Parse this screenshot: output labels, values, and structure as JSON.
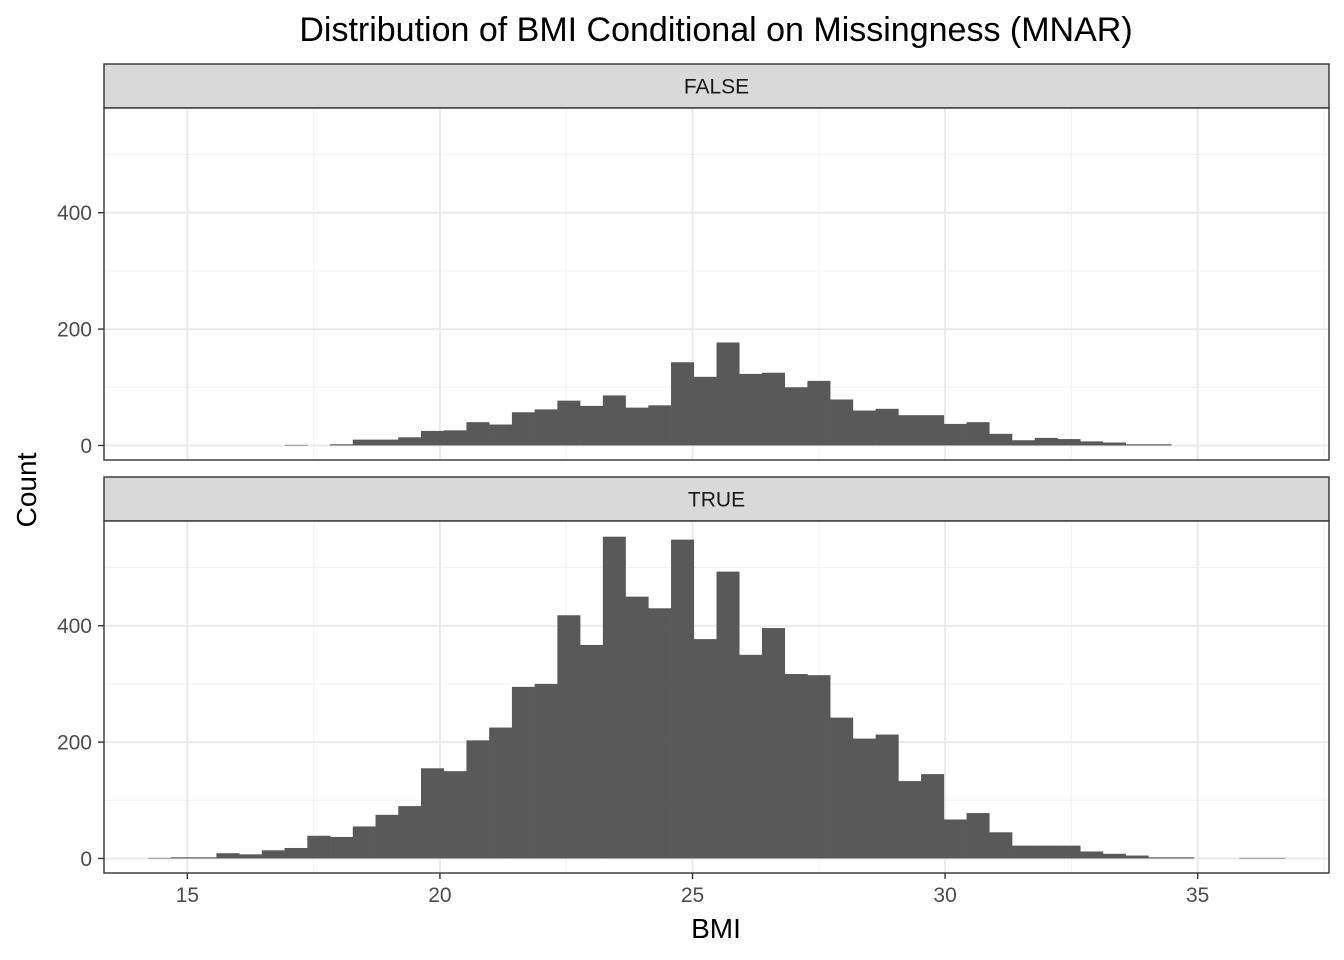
{
  "chart_data": {
    "type": "bar",
    "subtype": "faceted-histogram",
    "title": "Distribution of BMI Conditional on Missingness (MNAR)",
    "xlabel": "BMI",
    "ylabel": "Count",
    "xlim": [
      13.35,
      37.6
    ],
    "ylim": [
      -25,
      580
    ],
    "x_ticks": [
      15,
      20,
      25,
      30,
      35
    ],
    "y_ticks": [
      0,
      200,
      400
    ],
    "grid": true,
    "bar_color": "#595959",
    "bin_width": 0.45,
    "facets": [
      {
        "label": "FALSE",
        "bins": [
          [
            17.15,
            1
          ],
          [
            17.6,
            0
          ],
          [
            18.05,
            2
          ],
          [
            18.5,
            10
          ],
          [
            18.95,
            10
          ],
          [
            19.4,
            14
          ],
          [
            19.85,
            25
          ],
          [
            20.3,
            26
          ],
          [
            20.75,
            40
          ],
          [
            21.2,
            36
          ],
          [
            21.65,
            57
          ],
          [
            22.1,
            62
          ],
          [
            22.55,
            77
          ],
          [
            23.0,
            68
          ],
          [
            23.45,
            86
          ],
          [
            23.9,
            65
          ],
          [
            24.35,
            69
          ],
          [
            24.8,
            143
          ],
          [
            25.25,
            118
          ],
          [
            25.7,
            177
          ],
          [
            26.15,
            123
          ],
          [
            26.6,
            125
          ],
          [
            27.05,
            100
          ],
          [
            27.5,
            111
          ],
          [
            27.95,
            79
          ],
          [
            28.4,
            60
          ],
          [
            28.85,
            63
          ],
          [
            29.3,
            52
          ],
          [
            29.75,
            52
          ],
          [
            30.2,
            37
          ],
          [
            30.65,
            40
          ],
          [
            31.1,
            20
          ],
          [
            31.55,
            9
          ],
          [
            32.0,
            13
          ],
          [
            32.45,
            11
          ],
          [
            32.9,
            7
          ],
          [
            33.35,
            5
          ],
          [
            33.8,
            2
          ],
          [
            34.25,
            2
          ]
        ]
      },
      {
        "label": "TRUE",
        "bins": [
          [
            14.45,
            1
          ],
          [
            14.9,
            2
          ],
          [
            15.35,
            2
          ],
          [
            15.8,
            9
          ],
          [
            16.25,
            7
          ],
          [
            16.7,
            14
          ],
          [
            17.15,
            18
          ],
          [
            17.6,
            39
          ],
          [
            18.05,
            37
          ],
          [
            18.5,
            55
          ],
          [
            18.95,
            75
          ],
          [
            19.4,
            90
          ],
          [
            19.85,
            155
          ],
          [
            20.3,
            150
          ],
          [
            20.75,
            203
          ],
          [
            21.2,
            225
          ],
          [
            21.65,
            295
          ],
          [
            22.1,
            300
          ],
          [
            22.55,
            418
          ],
          [
            23.0,
            367
          ],
          [
            23.45,
            553
          ],
          [
            23.9,
            450
          ],
          [
            24.35,
            430
          ],
          [
            24.8,
            548
          ],
          [
            25.25,
            377
          ],
          [
            25.7,
            493
          ],
          [
            26.15,
            350
          ],
          [
            26.6,
            396
          ],
          [
            27.05,
            317
          ],
          [
            27.5,
            315
          ],
          [
            27.95,
            242
          ],
          [
            28.4,
            206
          ],
          [
            28.85,
            213
          ],
          [
            29.3,
            133
          ],
          [
            29.75,
            145
          ],
          [
            30.2,
            67
          ],
          [
            30.65,
            78
          ],
          [
            31.1,
            45
          ],
          [
            31.55,
            22
          ],
          [
            32.0,
            22
          ],
          [
            32.45,
            22
          ],
          [
            32.9,
            12
          ],
          [
            33.35,
            8
          ],
          [
            33.8,
            5
          ],
          [
            34.25,
            2
          ],
          [
            34.7,
            2
          ],
          [
            35.15,
            0
          ],
          [
            35.6,
            0
          ],
          [
            36.05,
            1
          ],
          [
            36.5,
            1
          ]
        ]
      }
    ]
  }
}
